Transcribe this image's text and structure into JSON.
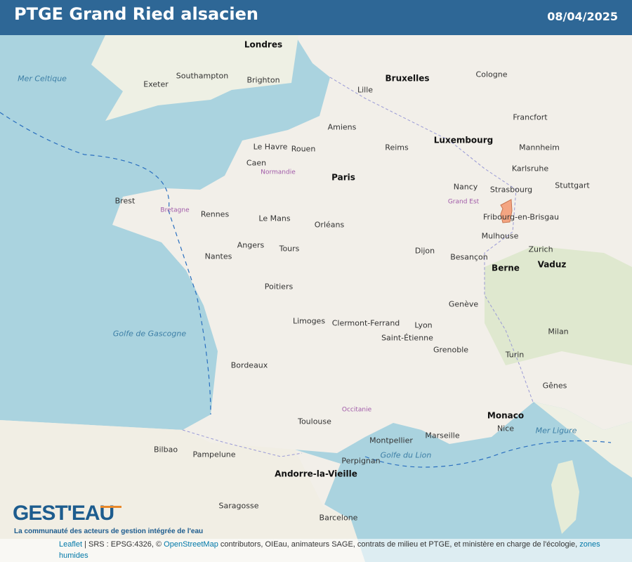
{
  "header": {
    "title": "PTGE Grand Ried alsacien",
    "date": "08/04/2025"
  },
  "colors": {
    "header": "#2e6796",
    "sea": "#aad3df",
    "land": "#f2efe9",
    "highlight": "#f4a582"
  },
  "map": {
    "highlight_area": "PTGE Grand Ried alsacien",
    "cities": [
      {
        "name": "Londres",
        "cls": "big"
      },
      {
        "name": "Bruxelles",
        "cls": "big"
      },
      {
        "name": "Luxembourg",
        "cls": "big"
      },
      {
        "name": "Paris",
        "cls": "big"
      },
      {
        "name": "Berne",
        "cls": "big"
      },
      {
        "name": "Vaduz",
        "cls": "big"
      },
      {
        "name": "Monaco",
        "cls": "big"
      },
      {
        "name": "Andorre-la-Vieille",
        "cls": "big"
      },
      {
        "name": "Amiens",
        "cls": ""
      },
      {
        "name": "Rouen",
        "cls": ""
      },
      {
        "name": "Caen",
        "cls": ""
      },
      {
        "name": "Le Havre",
        "cls": ""
      },
      {
        "name": "Rennes",
        "cls": ""
      },
      {
        "name": "Brest",
        "cls": ""
      },
      {
        "name": "Nantes",
        "cls": ""
      },
      {
        "name": "Le Mans",
        "cls": ""
      },
      {
        "name": "Orléans",
        "cls": ""
      },
      {
        "name": "Tours",
        "cls": ""
      },
      {
        "name": "Angers",
        "cls": ""
      },
      {
        "name": "Poitiers",
        "cls": ""
      },
      {
        "name": "Limoges",
        "cls": ""
      },
      {
        "name": "Bordeaux",
        "cls": ""
      },
      {
        "name": "Toulouse",
        "cls": ""
      },
      {
        "name": "Montpellier",
        "cls": ""
      },
      {
        "name": "Marseille",
        "cls": ""
      },
      {
        "name": "Lyon",
        "cls": ""
      },
      {
        "name": "Grenoble",
        "cls": ""
      },
      {
        "name": "Dijon",
        "cls": ""
      },
      {
        "name": "Besançon",
        "cls": ""
      },
      {
        "name": "Strasbourg",
        "cls": ""
      },
      {
        "name": "Mulhouse",
        "cls": ""
      },
      {
        "name": "Nancy",
        "cls": ""
      },
      {
        "name": "Reims",
        "cls": ""
      },
      {
        "name": "Lille",
        "cls": ""
      },
      {
        "name": "Clermont-Ferrand",
        "cls": ""
      },
      {
        "name": "Saint-Étienne",
        "cls": ""
      },
      {
        "name": "Nice",
        "cls": ""
      },
      {
        "name": "Perpignan",
        "cls": ""
      },
      {
        "name": "Barcelone",
        "cls": ""
      },
      {
        "name": "Genève",
        "cls": ""
      },
      {
        "name": "Zurich",
        "cls": ""
      },
      {
        "name": "Turin",
        "cls": ""
      },
      {
        "name": "Milan",
        "cls": ""
      },
      {
        "name": "Gênes",
        "cls": ""
      },
      {
        "name": "Fribourg-en-Brisgau",
        "cls": ""
      },
      {
        "name": "Karlsruhe",
        "cls": ""
      },
      {
        "name": "Stuttgart",
        "cls": ""
      },
      {
        "name": "Mannheim",
        "cls": ""
      },
      {
        "name": "Cologne",
        "cls": ""
      },
      {
        "name": "Francfort",
        "cls": ""
      },
      {
        "name": "Pampelune",
        "cls": ""
      },
      {
        "name": "Saragosse",
        "cls": ""
      },
      {
        "name": "Bilbao",
        "cls": ""
      },
      {
        "name": "Southampton",
        "cls": ""
      },
      {
        "name": "Brighton",
        "cls": ""
      },
      {
        "name": "Exeter",
        "cls": ""
      },
      {
        "name": "Golfe de Gascogne",
        "cls": "sea"
      },
      {
        "name": "Golfe du Lion",
        "cls": "sea"
      },
      {
        "name": "Mer Celtique",
        "cls": "sea"
      },
      {
        "name": "Mer Ligure",
        "cls": "sea"
      },
      {
        "name": "Bretagne",
        "cls": "region"
      },
      {
        "name": "Normandie",
        "cls": "region"
      },
      {
        "name": "Grand Est",
        "cls": "region"
      },
      {
        "name": "Occitanie",
        "cls": "region"
      }
    ]
  },
  "logo": {
    "text": "GEST'EAU",
    "tagline": "La communauté des acteurs de gestion intégrée de l'eau"
  },
  "attribution": {
    "leaflet": "Leaflet",
    "srs": " | SRS : EPSG:4326, © ",
    "osm": "OpenStreetMap",
    "rest": " contributors, OIEau, animateurs SAGE, contrats de milieu et PTGE, et ministère en charge de l'écologie, ",
    "zones": "zones",
    "humides": "humides"
  }
}
